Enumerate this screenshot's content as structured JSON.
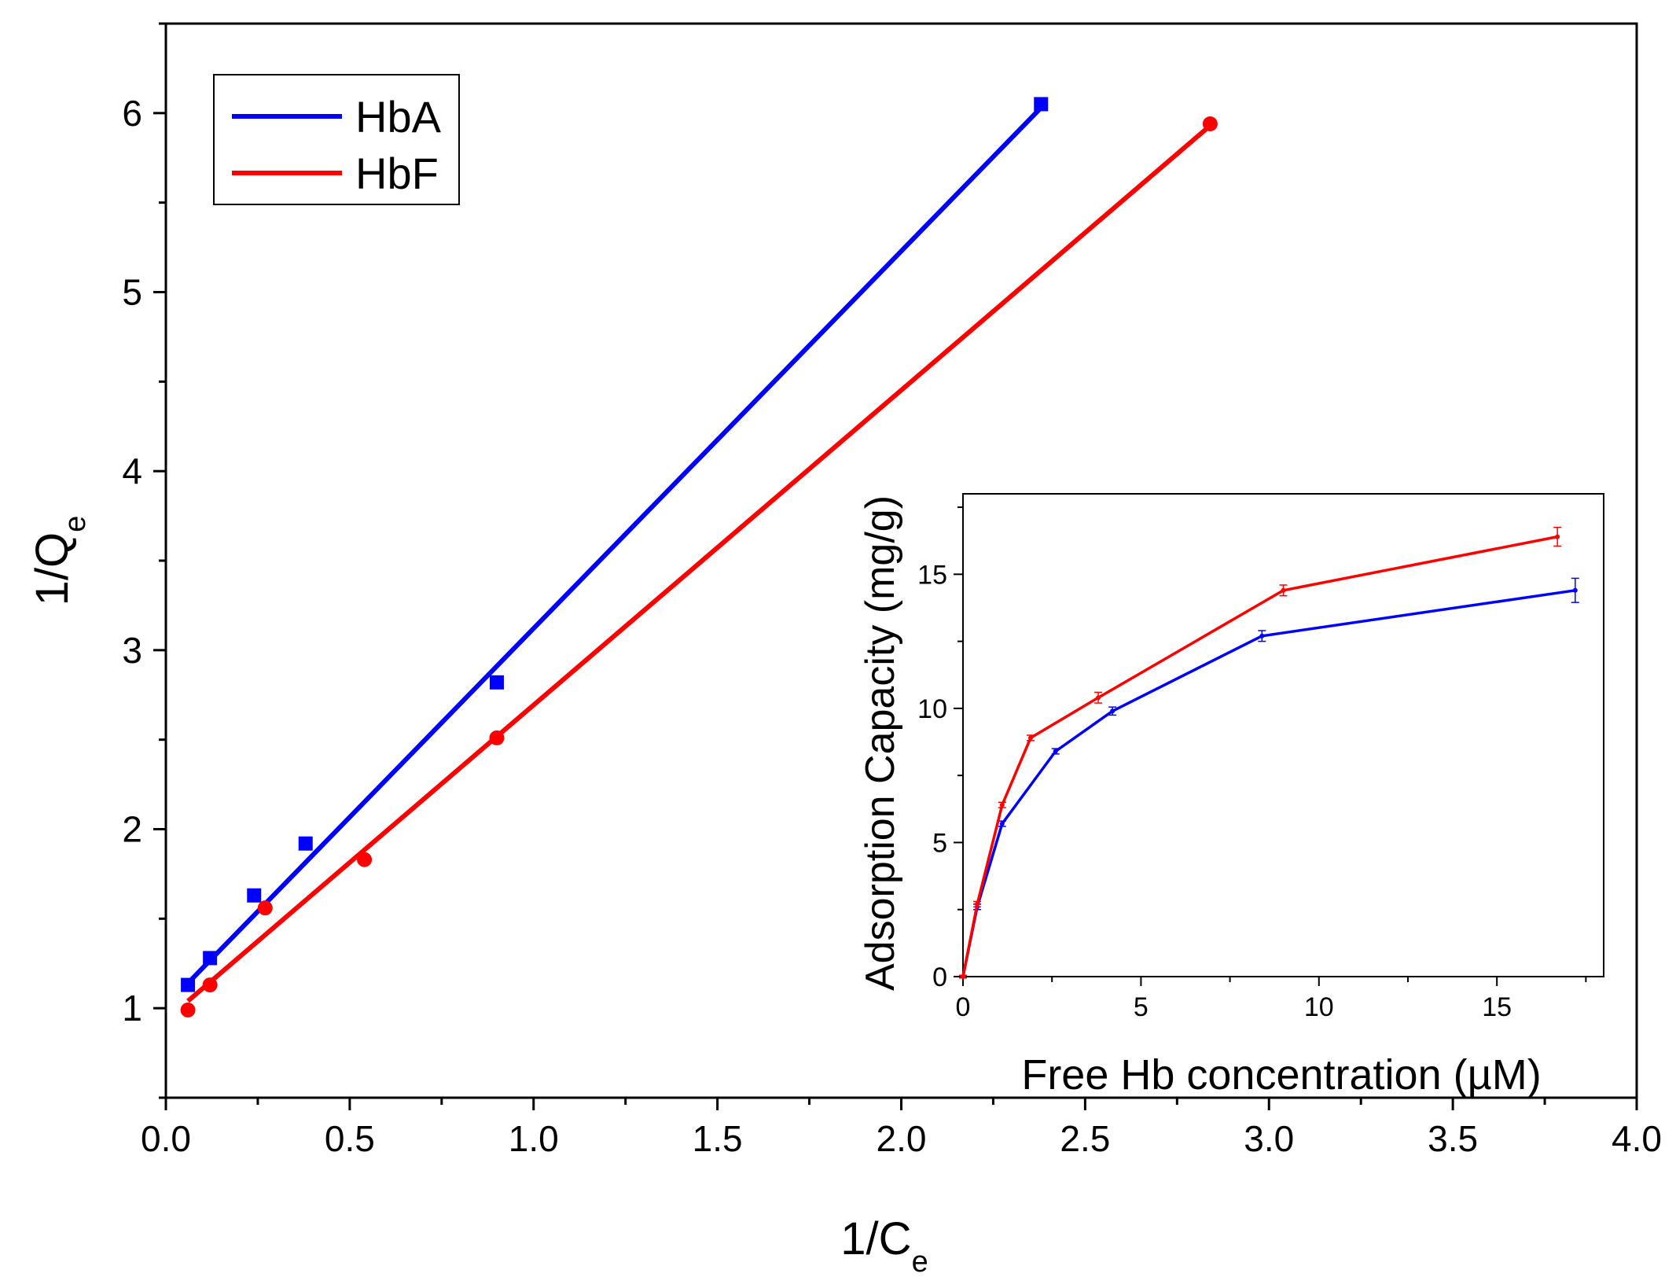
{
  "chart_data": [
    {
      "type": "scatter",
      "title": "",
      "xlabel": "1/C",
      "xlabel_sub": "e",
      "ylabel": "1/Q",
      "ylabel_sub": "e",
      "xlim": [
        0.0,
        4.0
      ],
      "ylim": [
        0.5,
        6.5
      ],
      "xticks": [
        "0.0",
        "0.5",
        "1.0",
        "1.5",
        "2.0",
        "2.5",
        "3.0",
        "3.5",
        "4.0"
      ],
      "yticks": [
        "1",
        "2",
        "3",
        "4",
        "5",
        "6"
      ],
      "legend": {
        "position": "top-left",
        "entries": [
          "HbA",
          "HbF"
        ]
      },
      "series": [
        {
          "name": "HbA",
          "color": "#0000ff",
          "marker": "square",
          "x": [
            0.06,
            0.12,
            0.24,
            0.38,
            0.9,
            2.38
          ],
          "y": [
            1.13,
            1.28,
            1.63,
            1.92,
            2.82,
            6.05
          ],
          "fit": {
            "x": [
              0.06,
              2.38
            ],
            "y": [
              1.14,
              6.03
            ]
          }
        },
        {
          "name": "HbF",
          "color": "#ff0000",
          "marker": "circle",
          "x": [
            0.06,
            0.12,
            0.27,
            0.54,
            0.9,
            2.84
          ],
          "y": [
            0.99,
            1.13,
            1.56,
            1.83,
            2.51,
            5.94
          ],
          "fit": {
            "x": [
              0.06,
              2.84
            ],
            "y": [
              1.04,
              5.93
            ]
          }
        }
      ]
    },
    {
      "type": "line",
      "title": "",
      "xlabel": "Free Hb concentration (µM)",
      "ylabel": "Adsorption Capacity (mg/g)",
      "xlim": [
        0,
        18
      ],
      "ylim": [
        0,
        18
      ],
      "xticks": [
        "0",
        "5",
        "10",
        "15"
      ],
      "yticks": [
        "0",
        "5",
        "10",
        "15"
      ],
      "series": [
        {
          "name": "HbA",
          "color": "#0000ff",
          "x": [
            0,
            0.4,
            1.1,
            2.6,
            4.2,
            8.4,
            17.2
          ],
          "y": [
            0,
            2.6,
            5.7,
            8.4,
            9.9,
            12.7,
            14.4
          ],
          "err": [
            0.05,
            0.1,
            0.1,
            0.1,
            0.15,
            0.2,
            0.45
          ]
        },
        {
          "name": "HbF",
          "color": "#ff0000",
          "x": [
            0,
            0.4,
            1.1,
            1.9,
            3.8,
            9.0,
            16.7
          ],
          "y": [
            0,
            2.7,
            6.4,
            8.9,
            10.4,
            14.4,
            16.4
          ],
          "err": [
            0.05,
            0.1,
            0.1,
            0.1,
            0.2,
            0.2,
            0.35
          ]
        }
      ]
    }
  ]
}
